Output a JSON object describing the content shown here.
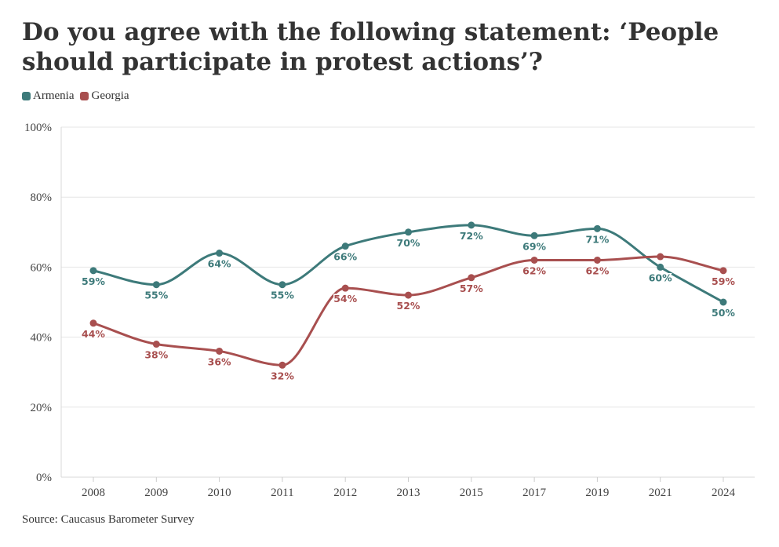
{
  "chart_data": {
    "type": "line",
    "title": "Do you agree with the following statement: ‘People should participate in protest actions’?",
    "categories": [
      "2008",
      "2009",
      "2010",
      "2011",
      "2012",
      "2013",
      "2015",
      "2017",
      "2019",
      "2021",
      "2024"
    ],
    "series": [
      {
        "name": "Armenia",
        "color": "#3d7a7a",
        "values": [
          59,
          55,
          64,
          55,
          66,
          70,
          72,
          69,
          71,
          60,
          50
        ]
      },
      {
        "name": "Georgia",
        "color": "#a84f4f",
        "values": [
          44,
          38,
          36,
          32,
          54,
          52,
          57,
          62,
          62,
          63,
          59
        ]
      }
    ],
    "data_labels": {
      "Armenia": [
        "59%",
        "55%",
        "64%",
        "55%",
        "66%",
        "70%",
        "72%",
        "69%",
        "71%",
        "60%",
        "50%"
      ],
      "Georgia": [
        "44%",
        "38%",
        "36%",
        "32%",
        "54%",
        "52%",
        "57%",
        "62%",
        "62%",
        "",
        "59%"
      ]
    },
    "y_ticks": [
      "0%",
      "20%",
      "40%",
      "60%",
      "80%",
      "100%"
    ],
    "ylim": [
      0,
      100
    ],
    "xlabel": "",
    "ylabel": "",
    "legend_position": "top-left",
    "grid": true
  },
  "source": "Source: Caucasus Barometer Survey"
}
